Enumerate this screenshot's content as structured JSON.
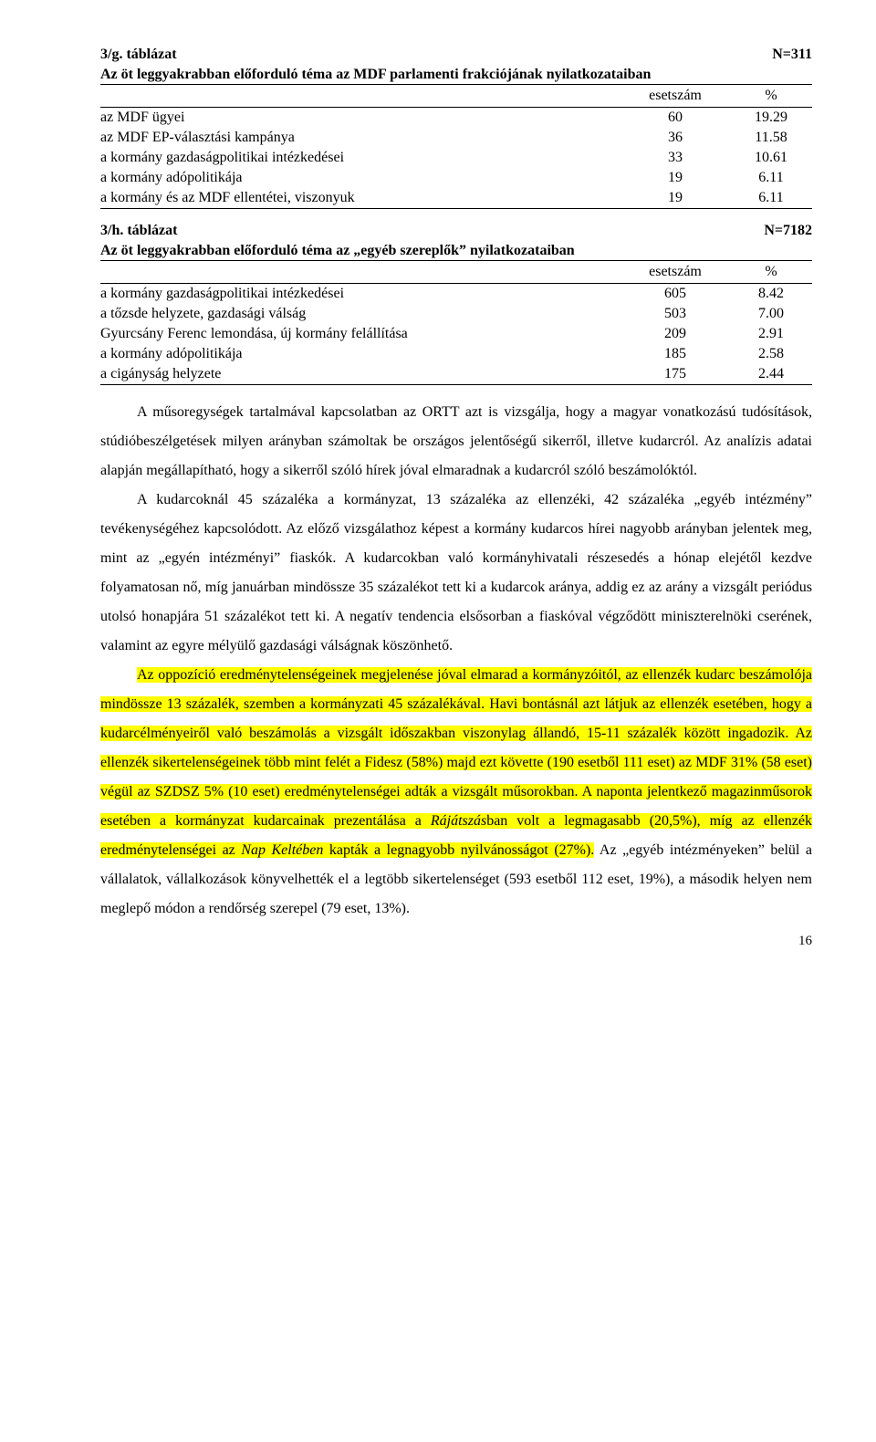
{
  "tableG": {
    "code": "3/g. táblázat",
    "n": "N=311",
    "caption": "Az öt leggyakrabban előforduló téma az MDF parlamenti frakciójának nyilatkozataiban",
    "col1": "esetszám",
    "col2": "%",
    "rows": [
      {
        "label": "az MDF ügyei",
        "v1": "60",
        "v2": "19.29"
      },
      {
        "label": "az MDF EP-választási kampánya",
        "v1": "36",
        "v2": "11.58"
      },
      {
        "label": "a kormány gazdaságpolitikai intézkedései",
        "v1": "33",
        "v2": "10.61"
      },
      {
        "label": "a kormány adópolitikája",
        "v1": "19",
        "v2": "6.11"
      },
      {
        "label": "a kormány és az MDF ellentétei, viszonyuk",
        "v1": "19",
        "v2": "6.11"
      }
    ]
  },
  "tableH": {
    "code": "3/h. táblázat",
    "n": "N=7182",
    "caption": "Az öt leggyakrabban előforduló téma az „egyéb szereplők” nyilatkozataiban",
    "col1": "esetszám",
    "col2": "%",
    "rows": [
      {
        "label": "a kormány gazdaságpolitikai intézkedései",
        "v1": "605",
        "v2": "8.42"
      },
      {
        "label": "a tőzsde helyzete, gazdasági válság",
        "v1": "503",
        "v2": "7.00"
      },
      {
        "label": "Gyurcsány Ferenc lemondása, új kormány felállítása",
        "v1": "209",
        "v2": "2.91"
      },
      {
        "label": "a kormány adópolitikája",
        "v1": "185",
        "v2": "2.58"
      },
      {
        "label": "a cigányság helyzete",
        "v1": "175",
        "v2": "2.44"
      }
    ]
  },
  "body": {
    "p1": "A műsoregységek tartalmával kapcsolatban az ORTT azt is vizsgálja, hogy a magyar vonatkozású tudósítások, stúdióbeszélgetések milyen arányban számoltak be országos jelentőségű sikerről, illetve kudarcról. Az analízis adatai alapján megállapítható, hogy a sikerről szóló hírek jóval elmaradnak a kudarcról szóló beszámolóktól.",
    "p2": "A kudarcoknál 45 százaléka a kormányzat, 13 százaléka az ellenzéki, 42 százaléka „egyéb intézmény” tevékenységéhez kapcsolódott. Az előző vizsgálathoz képest a kormány kudarcos hírei nagyobb arányban jelentek meg, mint az „egyén intézményi” fiaskók. A kudarcokban való kormányhivatali részesedés a hónap elejétől kezdve folyamatosan nő, míg januárban mindössze 35 százalékot tett ki a kudarcok aránya, addig ez az arány a vizsgált periódus utolsó honapjára 51 százalékot tett ki. A negatív tendencia elsősorban a fiaskóval végződött miniszterelnöki cserének, valamint az egyre mélyülő gazdasági válságnak köszönhető.",
    "p3a": "Az oppozíció eredménytelenségeinek megjelenése jóval elmarad a kormányzóitól, az ellenzék kudarc beszámolója mindössze 13 százalék, szemben a kormányzati 45 százalékával. Havi bontásnál azt látjuk az ellenzék esetében, hogy a kudarcélményeiről való beszámolás a vizsgált időszakban viszonylag állandó, 15-11 százalék között ingadozik. Az ellenzék sikertelenségeinek több mint felét a Fidesz (58%) majd ezt követte (190 esetből 111 eset) az MDF 31% (58 eset) végül az SZDSZ 5% (10 eset) eredménytelenségei adták a vizsgált műsorokban. A naponta jelentkező magazinműsorok esetében a kormányzat kudarcainak prezentálása a ",
    "p3b": "Rájátszás",
    "p3c": "ban volt a legmagasabb (20,5%), míg az ellenzék eredménytelenségei az ",
    "p3d": "Nap Keltében",
    "p3e": " kapták a legnagyobb nyilvánosságot (27%).",
    "p3f": " Az „egyéb intézményeken” belül a vállalatok, vállalkozások könyvelhették el a legtöbb sikertelenséget (593 esetből 112 eset, 19%), a második helyen nem meglepő módon a rendőrség szerepel (79 eset, 13%)."
  },
  "pagenum": "16"
}
